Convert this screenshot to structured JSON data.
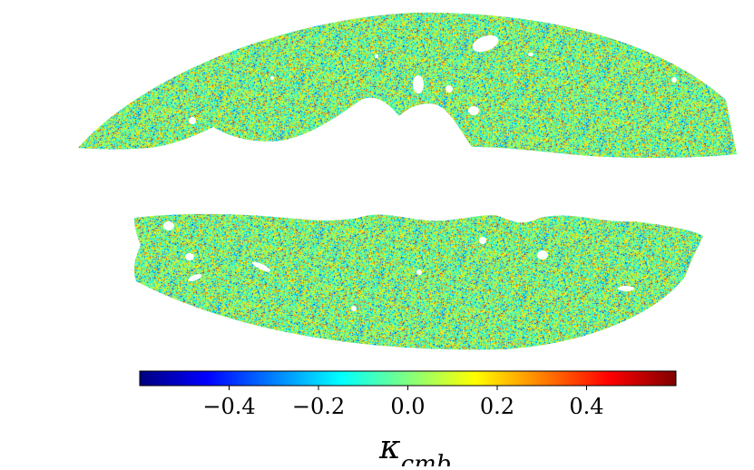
{
  "figure": {
    "projection": "mollweide",
    "colormap": "jet",
    "map_regions": [
      "north-footprint",
      "south-footprint"
    ],
    "masked_color": "#ffffff"
  },
  "colorbar": {
    "orientation": "horizontal",
    "vmin": -0.6,
    "vmax": 0.6,
    "tick_labels": [
      "−0.4",
      "−0.2",
      "0.0",
      "0.2",
      "0.4"
    ],
    "label_main": "κ",
    "label_sub": "cmb",
    "stops": [
      "#00007f",
      "#0000ff",
      "#0080ff",
      "#00ffff",
      "#80ff80",
      "#ffff00",
      "#ff8000",
      "#ff0000",
      "#7f0000"
    ]
  }
}
